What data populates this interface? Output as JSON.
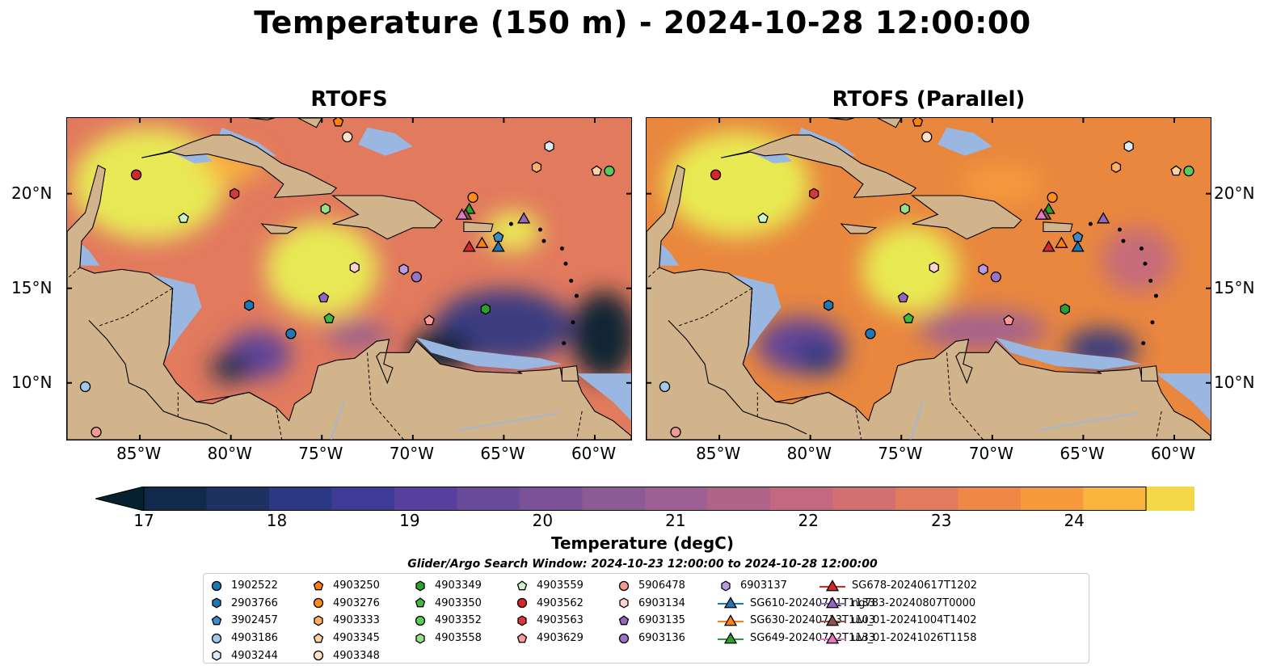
{
  "figure": {
    "title": "Temperature (150 m) - 2024-10-28 12:00:00",
    "search_window": "Glider/Argo Search Window: 2024-10-23 12:00:00 to 2024-10-28 12:00:00"
  },
  "panels": [
    {
      "title": "RTOFS"
    },
    {
      "title": "RTOFS (Parallel)"
    }
  ],
  "map_extent": {
    "lon_min": -89,
    "lon_max": -58,
    "lat_min": 7,
    "lat_max": 24
  },
  "axes": {
    "x_ticks": [
      {
        "lon": -85,
        "label": "85°W"
      },
      {
        "lon": -80,
        "label": "80°W"
      },
      {
        "lon": -75,
        "label": "75°W"
      },
      {
        "lon": -70,
        "label": "70°W"
      },
      {
        "lon": -65,
        "label": "65°W"
      },
      {
        "lon": -60,
        "label": "60°W"
      }
    ],
    "y_ticks": [
      {
        "lat": 20,
        "label": "20°N"
      },
      {
        "lat": 15,
        "label": "15°N"
      },
      {
        "lat": 10,
        "label": "10°N"
      }
    ]
  },
  "colorbar": {
    "label": "Temperature (degC)",
    "min": 16.75,
    "max": 24.5,
    "ticks": [
      {
        "value": 17,
        "label": "17"
      },
      {
        "value": 18,
        "label": "18"
      },
      {
        "value": 19,
        "label": "19"
      },
      {
        "value": 20,
        "label": "20"
      },
      {
        "value": 21,
        "label": "21"
      },
      {
        "value": 22,
        "label": "22"
      },
      {
        "value": 23,
        "label": "23"
      },
      {
        "value": 24,
        "label": "24"
      }
    ],
    "colors": [
      "#06202f",
      "#112a4b",
      "#1d3260",
      "#2b3883",
      "#3e3c96",
      "#573f9e",
      "#694a9b",
      "#7b5297",
      "#8c5b96",
      "#9e5f92",
      "#b0648a",
      "#c26880",
      "#d26f72",
      "#e27a5e",
      "#ef8747",
      "#f79a3c",
      "#fab63c",
      "#f4d848",
      "#e8f254"
    ]
  },
  "platforms": [
    {
      "id": "1902522",
      "shape": "circle",
      "color": "#1f77b4",
      "lon": -76.7,
      "lat": 12.6
    },
    {
      "id": "2903766",
      "shape": "hexagon",
      "color": "#1f77b4",
      "lon": -79.0,
      "lat": 14.1
    },
    {
      "id": "3902457",
      "shape": "pentagon",
      "color": "#3f8bc7",
      "lon": -65.3,
      "lat": 17.7
    },
    {
      "id": "4903186",
      "shape": "circle",
      "color": "#9ec9ea",
      "lon": -88.0,
      "lat": 9.8
    },
    {
      "id": "4903244",
      "shape": "hexagon",
      "color": "#dbeaf6",
      "lon": -62.5,
      "lat": 22.5
    },
    {
      "id": "4903250",
      "shape": "pentagon",
      "color": "#ff7f0e",
      "lon": -74.1,
      "lat": 23.8
    },
    {
      "id": "4903276",
      "shape": "circle",
      "color": "#ff8c1a",
      "lon": -66.7,
      "lat": 19.8
    },
    {
      "id": "4903333",
      "shape": "hexagon",
      "color": "#ffb066",
      "lon": -63.2,
      "lat": 21.4
    },
    {
      "id": "4903345",
      "shape": "pentagon",
      "color": "#ffd2a6",
      "lon": -59.9,
      "lat": 21.2
    },
    {
      "id": "4903348",
      "shape": "circle",
      "color": "#ffe2c4",
      "lon": -73.6,
      "lat": 23.0
    },
    {
      "id": "4903349",
      "shape": "hexagon",
      "color": "#2ca02c",
      "lon": -66.0,
      "lat": 13.9
    },
    {
      "id": "4903350",
      "shape": "pentagon",
      "color": "#3fb93f",
      "lon": -74.6,
      "lat": 13.4
    },
    {
      "id": "4903352",
      "shape": "circle",
      "color": "#5cc95c",
      "lon": -59.2,
      "lat": 21.2
    },
    {
      "id": "4903558",
      "shape": "hexagon",
      "color": "#98df8a",
      "lon": -74.8,
      "lat": 19.2
    },
    {
      "id": "4903559",
      "shape": "pentagon",
      "color": "#ccf4c4",
      "lon": -82.6,
      "lat": 18.7
    },
    {
      "id": "4903562",
      "shape": "circle",
      "color": "#d62728",
      "lon": -85.2,
      "lat": 21.0
    },
    {
      "id": "4903563",
      "shape": "hexagon",
      "color": "#d8383a",
      "lon": -79.8,
      "lat": 20.0
    },
    {
      "id": "4903629",
      "shape": "pentagon",
      "color": "#ff9896",
      "lon": -69.1,
      "lat": 13.3
    },
    {
      "id": "5906478",
      "shape": "circle",
      "color": "#f29a92",
      "lon": -87.4,
      "lat": 7.4
    },
    {
      "id": "6903134",
      "shape": "hexagon",
      "color": "#ffd2d0",
      "lon": -73.2,
      "lat": 16.1
    },
    {
      "id": "6903135",
      "shape": "pentagon",
      "color": "#9467bd",
      "lon": -74.9,
      "lat": 14.5
    },
    {
      "id": "6903136",
      "shape": "circle",
      "color": "#9a72c6",
      "lon": -69.8,
      "lat": 15.6
    },
    {
      "id": "6903137",
      "shape": "hexagon",
      "color": "#b89be0",
      "lon": -70.5,
      "lat": 16.0
    },
    {
      "id": "SG610-20240711T1133",
      "shape": "triangle",
      "color": "#1f77b4",
      "lon": -65.3,
      "lat": 17.2
    },
    {
      "id": "SG630-20240713T1103",
      "shape": "triangle",
      "color": "#ff7f0e",
      "lon": -66.2,
      "lat": 17.4
    },
    {
      "id": "SG649-20240712T1133",
      "shape": "triangle",
      "color": "#2ca02c",
      "lon": -66.9,
      "lat": 19.2
    },
    {
      "id": "SG678-20240617T1202",
      "shape": "triangle",
      "color": "#d62728",
      "lon": -66.9,
      "lat": 17.2
    },
    {
      "id": "ng783-20240807T0000",
      "shape": "triangle",
      "color": "#9467bd",
      "lon": -63.9,
      "lat": 18.7
    },
    {
      "id": "uvi_01-20241004T1402",
      "shape": "triangle",
      "color": "#8c564b",
      "lon": -67.1,
      "lat": 18.9
    },
    {
      "id": "uvi_01-20241026T1158",
      "shape": "triangle",
      "color": "#e377c2",
      "lon": -67.3,
      "lat": 18.9
    }
  ]
}
